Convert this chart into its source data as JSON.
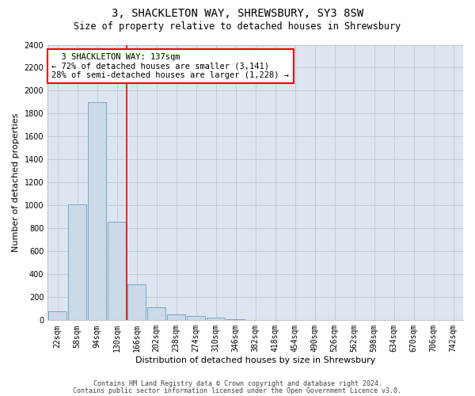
{
  "title": "3, SHACKLETON WAY, SHREWSBURY, SY3 8SW",
  "subtitle": "Size of property relative to detached houses in Shrewsbury",
  "xlabel": "Distribution of detached houses by size in Shrewsbury",
  "ylabel": "Number of detached properties",
  "categories": [
    "22sqm",
    "58sqm",
    "94sqm",
    "130sqm",
    "166sqm",
    "202sqm",
    "238sqm",
    "274sqm",
    "310sqm",
    "346sqm",
    "382sqm",
    "418sqm",
    "454sqm",
    "490sqm",
    "526sqm",
    "562sqm",
    "598sqm",
    "634sqm",
    "670sqm",
    "706sqm",
    "742sqm"
  ],
  "values": [
    80,
    1010,
    1900,
    860,
    310,
    110,
    50,
    35,
    20,
    10,
    5,
    3,
    2,
    0,
    0,
    0,
    0,
    0,
    0,
    0,
    0
  ],
  "bar_color": "#ccd9e8",
  "bar_edge_color": "#6a9cc0",
  "grid_color": "#b8c8d8",
  "background_color": "#dde6f0",
  "annotation_line1": "  3 SHACKLETON WAY: 137sqm",
  "annotation_line2": "← 72% of detached houses are smaller (3,141)",
  "annotation_line3": "28% of semi-detached houses are larger (1,228) →",
  "ylim": [
    0,
    2400
  ],
  "yticks": [
    0,
    200,
    400,
    600,
    800,
    1000,
    1200,
    1400,
    1600,
    1800,
    2000,
    2200,
    2400
  ],
  "footer_line1": "Contains HM Land Registry data © Crown copyright and database right 2024.",
  "footer_line2": "Contains public sector information licensed under the Open Government Licence v3.0.",
  "title_fontsize": 10,
  "subtitle_fontsize": 8.5,
  "axis_label_fontsize": 8,
  "tick_fontsize": 7,
  "annotation_fontsize": 7.5,
  "footer_fontsize": 6
}
